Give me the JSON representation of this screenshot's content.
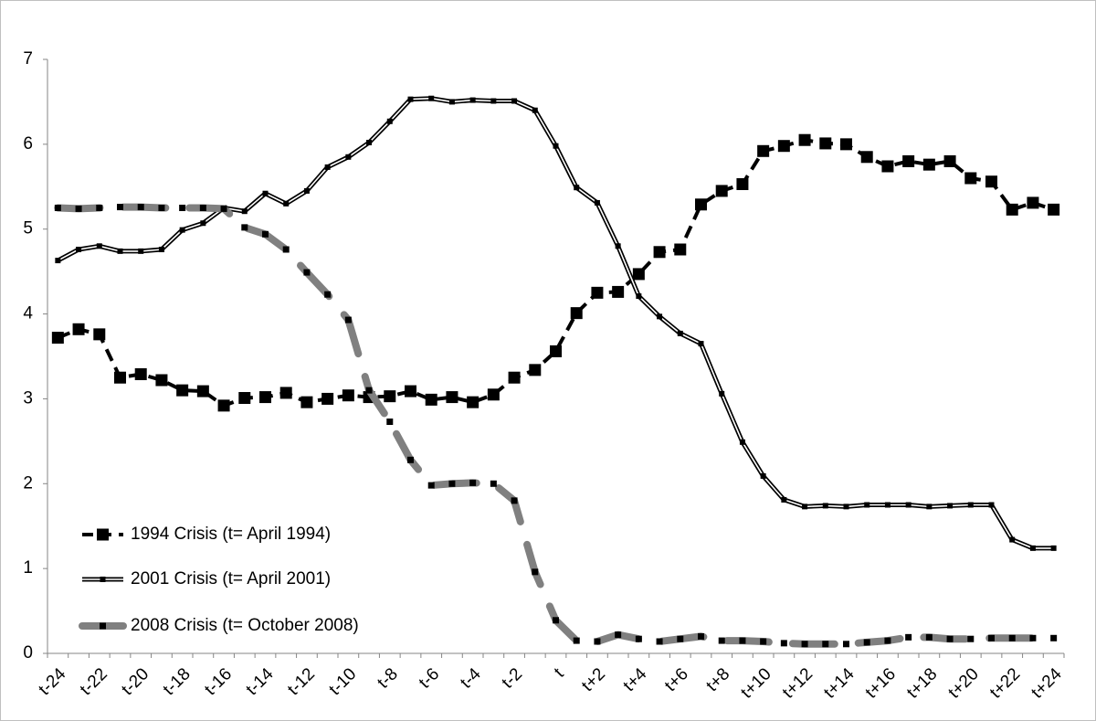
{
  "chart_data": {
    "type": "line",
    "categories": [
      "t-24",
      null,
      "t-22",
      null,
      "t-20",
      null,
      "t-18",
      null,
      "t-16",
      null,
      "t-14",
      null,
      "t-12",
      null,
      "t-10",
      null,
      "t-8",
      null,
      "t-6",
      null,
      "t-4",
      null,
      "t-2",
      null,
      "t",
      null,
      "t+2",
      null,
      "t+4",
      null,
      "t+6",
      null,
      "t+8",
      null,
      "t+10",
      null,
      "t+12",
      null,
      "t+14",
      null,
      "t+16",
      null,
      "t+18",
      null,
      "t+20",
      null,
      "t+22",
      null,
      "t+24"
    ],
    "ylim": [
      0,
      7
    ],
    "yticks": [
      0,
      1,
      2,
      3,
      4,
      5,
      6,
      7
    ],
    "grid": false,
    "legend": "lower-left",
    "series": [
      {
        "name": "1994 Crisis (t= April 1994)",
        "color": "#000000",
        "style": "dashed",
        "values": [
          3.72,
          3.82,
          3.76,
          3.25,
          3.29,
          3.22,
          3.1,
          3.09,
          2.92,
          3.01,
          3.02,
          3.07,
          2.96,
          3.0,
          3.04,
          3.02,
          3.03,
          3.09,
          2.99,
          3.02,
          2.96,
          3.05,
          3.25,
          3.34,
          3.56,
          4.01,
          4.25,
          4.26,
          4.47,
          4.73,
          4.76,
          5.29,
          5.45,
          5.53,
          5.92,
          5.98,
          6.05,
          6.01,
          6.0,
          5.85,
          5.74,
          5.8,
          5.76,
          5.8,
          5.6,
          5.56,
          5.23,
          5.31,
          5.23
        ]
      },
      {
        "name": "2001 Crisis (t= April 2001)",
        "color": "#000000",
        "style": "double",
        "values": [
          4.63,
          4.76,
          4.8,
          4.74,
          4.74,
          4.76,
          4.99,
          5.07,
          5.25,
          5.21,
          5.42,
          5.3,
          5.45,
          5.73,
          5.85,
          6.02,
          6.27,
          6.53,
          6.54,
          6.5,
          6.52,
          6.51,
          6.51,
          6.4,
          5.98,
          5.49,
          5.31,
          4.8,
          4.21,
          3.97,
          3.77,
          3.65,
          3.06,
          2.49,
          2.09,
          1.81,
          1.73,
          1.74,
          1.73,
          1.75,
          1.75,
          1.75,
          1.73,
          1.74,
          1.75,
          1.75,
          1.34,
          1.24,
          1.24
        ]
      },
      {
        "name": "2008 Crisis (t= October 2008)",
        "color": "#808080",
        "style": "thick",
        "values": [
          5.25,
          5.24,
          5.25,
          5.26,
          5.26,
          5.25,
          5.25,
          5.25,
          5.24,
          5.02,
          4.94,
          4.76,
          4.49,
          4.23,
          3.93,
          3.1,
          2.73,
          2.28,
          1.98,
          2.0,
          2.01,
          2.0,
          1.8,
          0.96,
          0.39,
          0.15,
          0.14,
          0.22,
          0.17,
          0.14,
          0.17,
          0.2,
          0.15,
          0.15,
          0.14,
          0.12,
          0.11,
          0.11,
          0.11,
          0.13,
          0.15,
          0.19,
          0.19,
          0.17,
          0.17,
          0.18,
          0.18,
          0.18,
          0.18
        ]
      }
    ]
  }
}
